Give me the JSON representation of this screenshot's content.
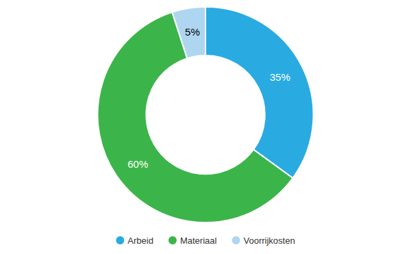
{
  "chart_data": {
    "type": "donut",
    "categories": [
      "Arbeid",
      "Materiaal",
      "Voorrijkosten"
    ],
    "values": [
      35,
      60,
      5
    ],
    "value_labels": [
      "35%",
      "60%",
      "5%"
    ],
    "colors": [
      "#29ABE2",
      "#3BB54A",
      "#AED6F1"
    ],
    "data_labels": true,
    "legend": "bottom"
  }
}
